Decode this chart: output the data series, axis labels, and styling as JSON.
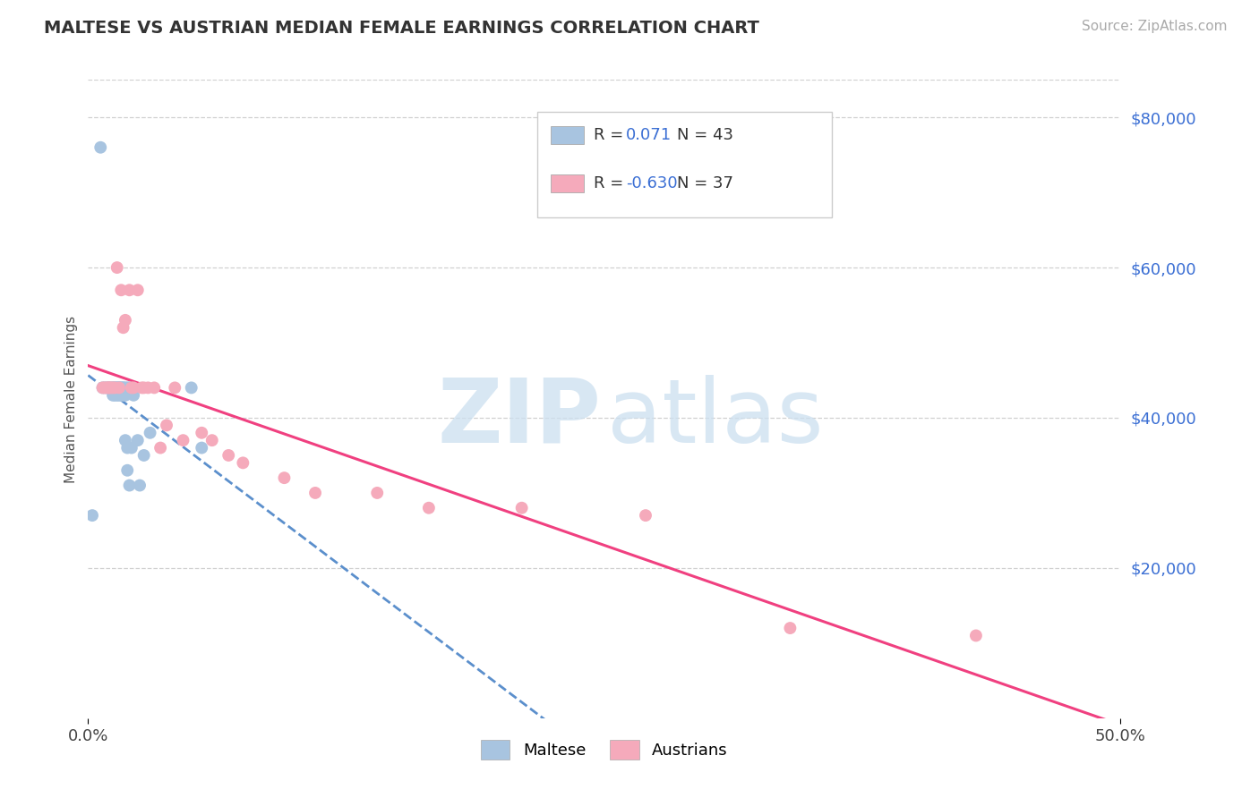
{
  "title": "MALTESE VS AUSTRIAN MEDIAN FEMALE EARNINGS CORRELATION CHART",
  "source": "Source: ZipAtlas.com",
  "ylabel": "Median Female Earnings",
  "y_ticks": [
    20000,
    40000,
    60000,
    80000
  ],
  "y_tick_labels": [
    "$20,000",
    "$40,000",
    "$60,000",
    "$80,000"
  ],
  "xlim": [
    0.0,
    0.5
  ],
  "ylim": [
    0,
    85000
  ],
  "maltese_R": "0.071",
  "maltese_N": "43",
  "austrian_R": "-0.630",
  "austrian_N": "37",
  "maltese_color": "#a8c4e0",
  "austrian_color": "#f5aabb",
  "maltese_line_color": "#5b8fcc",
  "austrian_line_color": "#f04080",
  "r_color": "#3b6fd4",
  "tick_color": "#3b6fd4",
  "title_color": "#333333",
  "source_color": "#aaaaaa",
  "grid_color": "#d0d0d0",
  "maltese_x": [
    0.002,
    0.006,
    0.007,
    0.008,
    0.009,
    0.01,
    0.01,
    0.011,
    0.012,
    0.012,
    0.012,
    0.013,
    0.013,
    0.013,
    0.014,
    0.014,
    0.014,
    0.015,
    0.015,
    0.015,
    0.015,
    0.016,
    0.016,
    0.016,
    0.017,
    0.017,
    0.017,
    0.018,
    0.018,
    0.018,
    0.019,
    0.019,
    0.019,
    0.02,
    0.02,
    0.021,
    0.022,
    0.024,
    0.025,
    0.027,
    0.03,
    0.05,
    0.055
  ],
  "maltese_y": [
    27000,
    76000,
    44000,
    44000,
    44000,
    44000,
    44000,
    44000,
    44000,
    44000,
    43000,
    44000,
    44000,
    43000,
    44000,
    44000,
    43000,
    43000,
    44000,
    44000,
    44000,
    43000,
    44000,
    44000,
    44000,
    43000,
    44000,
    37000,
    44000,
    43000,
    36000,
    44000,
    33000,
    31000,
    44000,
    36000,
    43000,
    37000,
    31000,
    35000,
    38000,
    44000,
    36000
  ],
  "austrian_x": [
    0.007,
    0.008,
    0.009,
    0.01,
    0.01,
    0.011,
    0.012,
    0.013,
    0.014,
    0.015,
    0.016,
    0.017,
    0.018,
    0.02,
    0.021,
    0.022,
    0.024,
    0.026,
    0.027,
    0.029,
    0.032,
    0.035,
    0.038,
    0.042,
    0.046,
    0.055,
    0.06,
    0.068,
    0.075,
    0.095,
    0.11,
    0.14,
    0.165,
    0.21,
    0.27,
    0.34,
    0.43
  ],
  "austrian_y": [
    44000,
    44000,
    44000,
    44000,
    44000,
    44000,
    44000,
    44000,
    60000,
    44000,
    57000,
    52000,
    53000,
    57000,
    44000,
    44000,
    57000,
    44000,
    44000,
    44000,
    44000,
    36000,
    39000,
    44000,
    37000,
    38000,
    37000,
    35000,
    34000,
    32000,
    30000,
    30000,
    28000,
    28000,
    27000,
    12000,
    11000
  ]
}
